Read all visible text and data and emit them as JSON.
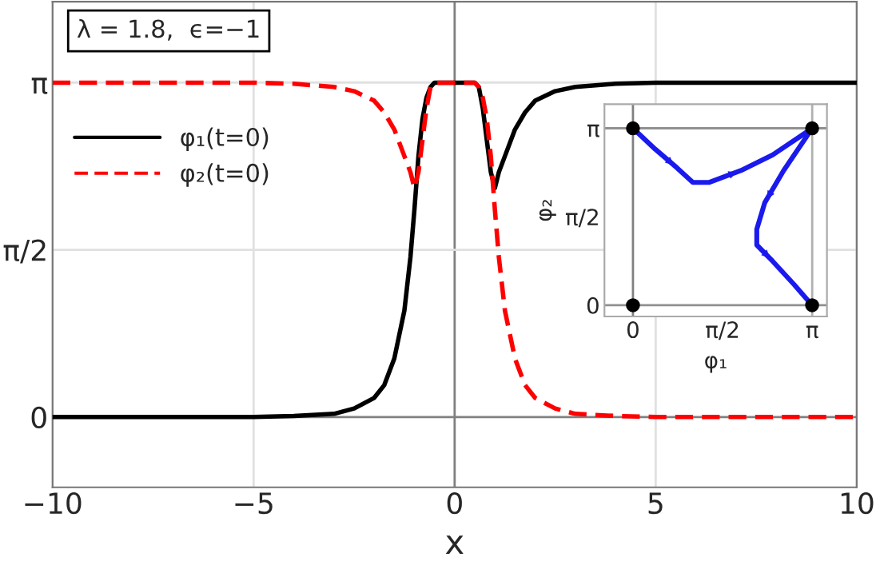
{
  "chart_data": [
    {
      "type": "line",
      "xlabel": "x",
      "xlim": [
        -10,
        10
      ],
      "xticks": [
        {
          "value": -10,
          "label": "−10"
        },
        {
          "value": -5,
          "label": "−5"
        },
        0,
        5,
        10
      ],
      "ylim": [
        -0.66,
        3.9
      ],
      "yticks": [
        {
          "value": 0,
          "label": "0"
        },
        {
          "value": 1.5708,
          "label": "π/2"
        },
        {
          "value": 3.1416,
          "label": "π"
        }
      ],
      "grid": true,
      "legend": "left",
      "annotations": [
        "λ = 1.8,  ϵ=−1"
      ],
      "x": [
        -10,
        -5,
        -4,
        -3,
        -2.5,
        -2,
        -1.75,
        -1.5,
        -1.25,
        -1.1,
        -1,
        -0.9,
        -0.8,
        -0.7,
        -0.6,
        -0.5,
        0,
        0.5,
        0.6,
        0.7,
        0.8,
        0.9,
        1,
        1.1,
        1.25,
        1.5,
        1.75,
        2,
        2.5,
        3,
        4,
        5,
        10
      ],
      "series": [
        {
          "name": "φ₁(t=0)",
          "color": "#000000",
          "line_style": "solid",
          "values": [
            0,
            0,
            0.01,
            0.03,
            0.08,
            0.18,
            0.3,
            0.55,
            1.0,
            1.5,
            1.95,
            2.45,
            2.8,
            3.0,
            3.1,
            3.14,
            3.14,
            3.14,
            3.1,
            2.9,
            2.6,
            2.3,
            2.15,
            2.3,
            2.45,
            2.7,
            2.86,
            2.97,
            3.06,
            3.1,
            3.13,
            3.14,
            3.14
          ]
        },
        {
          "name": "φ₂(t=0)",
          "color": "#ff0000",
          "line_style": "dashed",
          "values": [
            3.14,
            3.14,
            3.13,
            3.1,
            3.06,
            2.97,
            2.86,
            2.7,
            2.45,
            2.3,
            2.15,
            2.3,
            2.6,
            2.9,
            3.1,
            3.14,
            3.14,
            3.14,
            3.1,
            3.0,
            2.8,
            2.45,
            1.95,
            1.5,
            1.0,
            0.55,
            0.3,
            0.18,
            0.08,
            0.03,
            0.01,
            0,
            0
          ]
        }
      ]
    },
    {
      "type": "line",
      "xlabel": "φ₁",
      "ylabel": "φ₂",
      "xlim": [
        -0.5,
        3.4
      ],
      "ylim": [
        -0.2,
        3.57
      ],
      "xticks": [
        {
          "value": 0,
          "label": "0"
        },
        {
          "value": 1.5708,
          "label": "π/2"
        },
        {
          "value": 3.1416,
          "label": "π"
        }
      ],
      "yticks": [
        {
          "value": 0,
          "label": "0"
        },
        {
          "value": 1.5708,
          "label": "π/2"
        },
        {
          "value": 3.1416,
          "label": "π"
        }
      ],
      "grid": false,
      "ref_lines": [
        {
          "axis": "x",
          "value": 0,
          "color": "#808080"
        },
        {
          "axis": "x",
          "value": 3.1416,
          "color": "#b0b0b0"
        },
        {
          "axis": "y",
          "value": 0,
          "color": "#909090"
        },
        {
          "axis": "y",
          "value": 3.1416,
          "color": "#909090"
        }
      ],
      "series": [
        {
          "color": "#1a1aee",
          "line_style": "solid",
          "x": [
            0,
            0.39,
            0.77,
            1.05,
            1.33,
            1.89,
            2.45,
            3.14
          ],
          "values": [
            3.14,
            2.77,
            2.44,
            2.18,
            2.18,
            2.39,
            2.67,
            3.14
          ]
        },
        {
          "color": "#1a1aee",
          "line_style": "solid",
          "x": [
            3.14,
            2.64,
            2.31,
            2.17,
            2.17,
            2.45,
            2.83,
            3.14
          ],
          "values": [
            3.14,
            2.39,
            1.82,
            1.35,
            1.07,
            0.78,
            0.36,
            0
          ]
        },
        {
          "type": "scatter",
          "color": "#000000",
          "marker": "circle",
          "x": [
            0,
            0,
            3.14,
            3.14
          ],
          "values": [
            0,
            3.14,
            0,
            3.14
          ]
        }
      ]
    }
  ]
}
